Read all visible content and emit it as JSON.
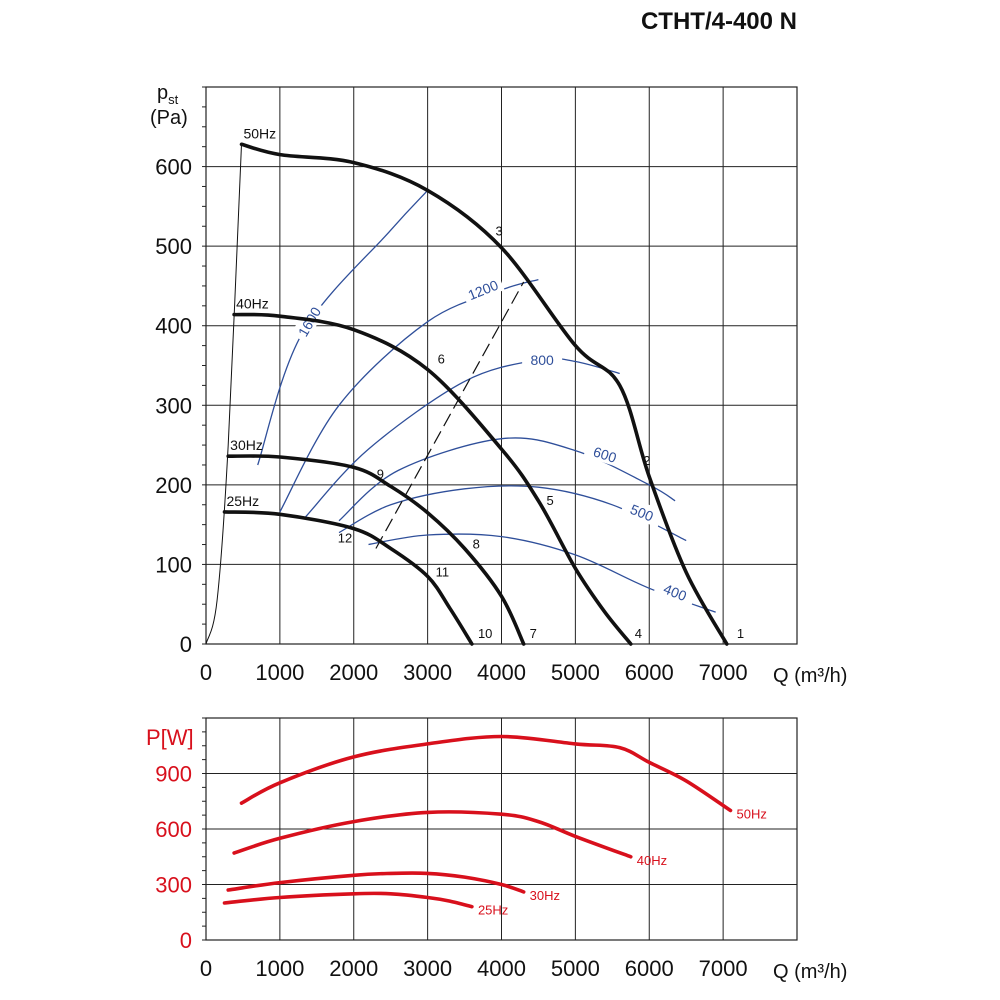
{
  "title": "CTHT/4-400 N",
  "colors": {
    "curve": "#111111",
    "efficiency": "#2f4f9a",
    "power": "#d8101c",
    "grid": "#222222"
  },
  "chart_data": [
    {
      "type": "line",
      "title": "",
      "xlabel": "Q (m³/h)",
      "ylabel": "pst (Pa)",
      "xlim": [
        0,
        8000
      ],
      "ylim": [
        0,
        700
      ],
      "x_ticks": [
        0,
        1000,
        2000,
        3000,
        4000,
        5000,
        6000,
        7000
      ],
      "y_ticks": [
        0,
        100,
        200,
        300,
        400,
        500,
        600
      ],
      "grid": true,
      "series": [
        {
          "name": "50Hz",
          "points": [
            [
              480,
              628
            ],
            [
              1000,
              615
            ],
            [
              2000,
              605
            ],
            [
              3000,
              570
            ],
            [
              4000,
              498
            ],
            [
              5000,
              375
            ],
            [
              5600,
              325
            ],
            [
              6000,
              210
            ],
            [
              6500,
              90
            ],
            [
              7050,
              0
            ]
          ]
        },
        {
          "name": "40Hz",
          "points": [
            [
              380,
              414
            ],
            [
              1000,
              412
            ],
            [
              2000,
              395
            ],
            [
              3000,
              345
            ],
            [
              4000,
              245
            ],
            [
              4500,
              180
            ],
            [
              5000,
              95
            ],
            [
              5400,
              40
            ],
            [
              5750,
              0
            ]
          ]
        },
        {
          "name": "30Hz",
          "points": [
            [
              300,
              236
            ],
            [
              1000,
              235
            ],
            [
              2000,
              222
            ],
            [
              2500,
              198
            ],
            [
              3000,
              165
            ],
            [
              3500,
              120
            ],
            [
              4000,
              60
            ],
            [
              4300,
              0
            ]
          ]
        },
        {
          "name": "25Hz",
          "points": [
            [
              250,
              166
            ],
            [
              1000,
              163
            ],
            [
              2000,
              145
            ],
            [
              2500,
              120
            ],
            [
              3000,
              85
            ],
            [
              3300,
              45
            ],
            [
              3600,
              0
            ]
          ]
        }
      ],
      "system_line": [
        [
          0,
          0
        ],
        [
          150,
          55
        ],
        [
          300,
          250
        ],
        [
          480,
          628
        ]
      ],
      "dashed_line": [
        [
          2300,
          120
        ],
        [
          4300,
          455
        ]
      ],
      "efficiency_lines": [
        {
          "label": "1600",
          "points": [
            [
              700,
              225
            ],
            [
              1300,
              390
            ],
            [
              2500,
              520
            ],
            [
              3000,
              570
            ]
          ]
        },
        {
          "label": "1200",
          "points": [
            [
              1000,
              166
            ],
            [
              1800,
              300
            ],
            [
              3000,
              405
            ],
            [
              4000,
              445
            ],
            [
              4500,
              458
            ]
          ]
        },
        {
          "label": "800",
          "points": [
            [
              1350,
              160
            ],
            [
              2200,
              245
            ],
            [
              3500,
              330
            ],
            [
              4500,
              357
            ],
            [
              5000,
              355
            ],
            [
              5600,
              340
            ]
          ]
        },
        {
          "label": "600",
          "points": [
            [
              1800,
              155
            ],
            [
              2600,
              218
            ],
            [
              4000,
              258
            ],
            [
              5000,
              243
            ],
            [
              6000,
              200
            ],
            [
              6350,
              180
            ]
          ]
        },
        {
          "label": "500",
          "points": [
            [
              1800,
              140
            ],
            [
              2500,
              175
            ],
            [
              3500,
              195
            ],
            [
              4500,
              197
            ],
            [
              5500,
              175
            ],
            [
              6500,
              130
            ]
          ]
        },
        {
          "label": "400",
          "points": [
            [
              2200,
              125
            ],
            [
              3000,
              137
            ],
            [
              4000,
              135
            ],
            [
              5000,
              112
            ],
            [
              6000,
              70
            ],
            [
              6900,
              40
            ]
          ]
        }
      ],
      "point_labels": [
        {
          "label": "1",
          "x": 7050,
          "y": 0
        },
        {
          "label": "2",
          "x": 6000,
          "y": 210
        },
        {
          "label": "3",
          "x": 4000,
          "y": 498
        },
        {
          "label": "4",
          "x": 5750,
          "y": 0
        },
        {
          "label": "5",
          "x": 4500,
          "y": 180
        },
        {
          "label": "6",
          "x": 3000,
          "y": 345
        },
        {
          "label": "7",
          "x": 4300,
          "y": 0
        },
        {
          "label": "8",
          "x": 3500,
          "y": 120
        },
        {
          "label": "9",
          "x": 2500,
          "y": 198
        },
        {
          "label": "10",
          "x": 3600,
          "y": 0
        },
        {
          "label": "11",
          "x": 3000,
          "y": 85
        },
        {
          "label": "12",
          "x": 2000,
          "y": 145
        }
      ]
    },
    {
      "type": "line",
      "title": "",
      "xlabel": "Q (m³/h)",
      "ylabel": "P[W]",
      "xlim": [
        0,
        8000
      ],
      "ylim": [
        0,
        1200
      ],
      "x_ticks": [
        0,
        1000,
        2000,
        3000,
        4000,
        5000,
        6000,
        7000
      ],
      "y_ticks": [
        0,
        300,
        600,
        900
      ],
      "grid": true,
      "series": [
        {
          "name": "50Hz",
          "points": [
            [
              480,
              740
            ],
            [
              1000,
              850
            ],
            [
              2000,
              990
            ],
            [
              3000,
              1060
            ],
            [
              4000,
              1100
            ],
            [
              5000,
              1060
            ],
            [
              5600,
              1040
            ],
            [
              6000,
              960
            ],
            [
              6500,
              860
            ],
            [
              7100,
              700
            ]
          ]
        },
        {
          "name": "40Hz",
          "points": [
            [
              380,
              470
            ],
            [
              1000,
              550
            ],
            [
              2000,
              640
            ],
            [
              3000,
              690
            ],
            [
              4000,
              680
            ],
            [
              4500,
              640
            ],
            [
              5000,
              560
            ],
            [
              5750,
              450
            ]
          ]
        },
        {
          "name": "30Hz",
          "points": [
            [
              300,
              270
            ],
            [
              1000,
              310
            ],
            [
              2000,
              350
            ],
            [
              2500,
              360
            ],
            [
              3000,
              360
            ],
            [
              3500,
              340
            ],
            [
              4000,
              300
            ],
            [
              4300,
              260
            ]
          ]
        },
        {
          "name": "25Hz",
          "points": [
            [
              250,
              200
            ],
            [
              1000,
              230
            ],
            [
              2000,
              250
            ],
            [
              2500,
              250
            ],
            [
              3000,
              230
            ],
            [
              3300,
              210
            ],
            [
              3600,
              180
            ]
          ]
        }
      ]
    }
  ]
}
